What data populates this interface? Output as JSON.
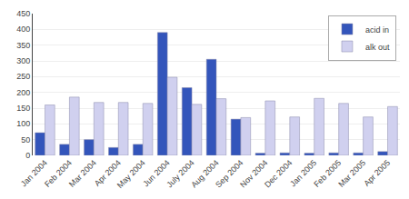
{
  "chart_data": {
    "type": "bar",
    "categories": [
      "Jan 2004",
      "Feb 2004",
      "Mar 2004",
      "Apr 2004",
      "May 2004",
      "Jun 2004",
      "July 2004",
      "Aug 2004",
      "Sep 2004",
      "Nov 2004",
      "Dec 2004",
      "Jan 2005",
      "Feb 2005",
      "Mar 2005",
      "Apr 2005"
    ],
    "series": [
      {
        "name": "acid in",
        "color": "#3355bb",
        "values": [
          72,
          35,
          50,
          25,
          35,
          390,
          215,
          305,
          115,
          7,
          8,
          7,
          8,
          8,
          12
        ]
      },
      {
        "name": "alk out",
        "color": "#d0d0ef",
        "values": [
          160,
          185,
          168,
          168,
          165,
          248,
          162,
          180,
          120,
          173,
          122,
          181,
          165,
          122,
          155
        ]
      }
    ],
    "ylim": [
      0,
      450
    ],
    "yticks": [
      0,
      50,
      100,
      150,
      200,
      250,
      300,
      350,
      400,
      450
    ],
    "grid": true,
    "legend": "upper right"
  }
}
